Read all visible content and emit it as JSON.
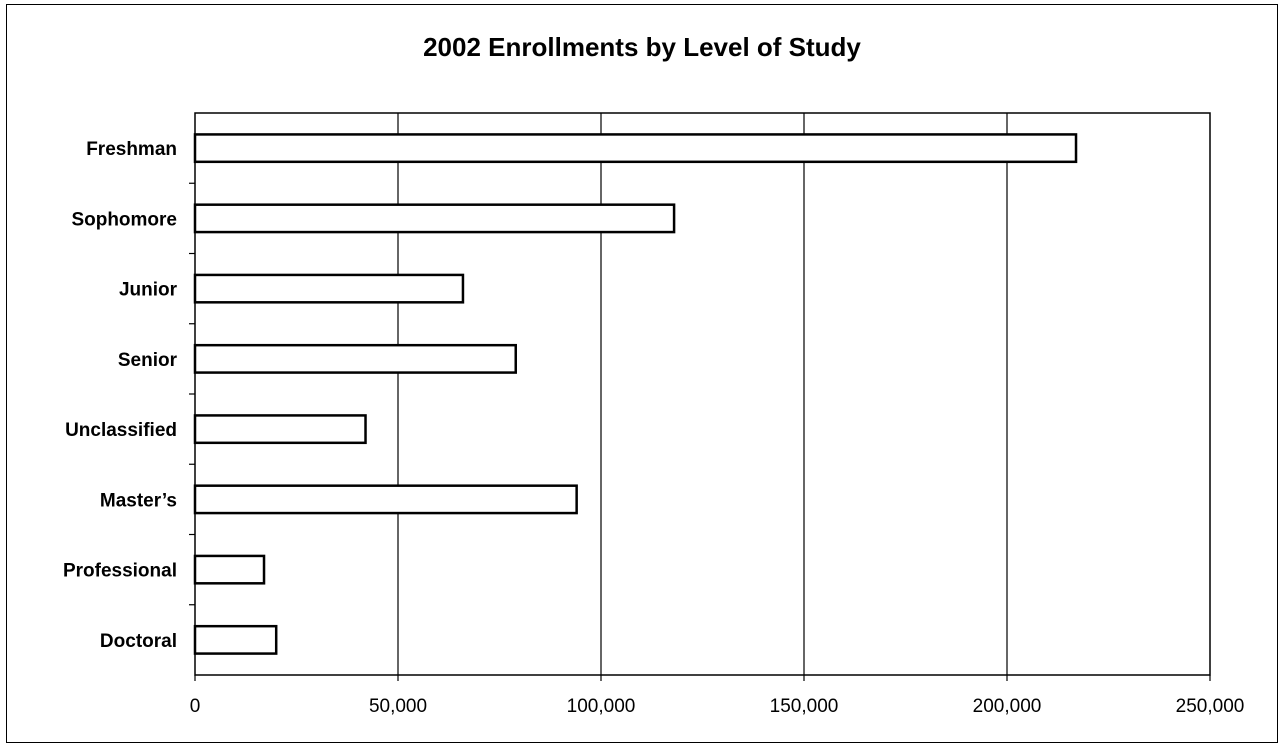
{
  "chart_data": {
    "type": "bar",
    "orientation": "horizontal",
    "title": "2002 Enrollments by Level of Study",
    "xlabel": "",
    "ylabel": "",
    "categories": [
      "Freshman",
      "Sophomore",
      "Junior",
      "Senior",
      "Unclassified",
      "Master’s",
      "Professional",
      "Doctoral"
    ],
    "values": [
      217000,
      118000,
      66000,
      79000,
      42000,
      94000,
      17000,
      20000
    ],
    "xlim": [
      0,
      250000
    ],
    "xticks": [
      "0",
      "50,000",
      "100,000",
      "150,000",
      "200,000",
      "250,000"
    ],
    "xtick_values": [
      0,
      50000,
      100000,
      150000,
      200000,
      250000
    ],
    "grid": "vertical",
    "legend": "none",
    "bar_fill": "#ffffff",
    "bar_stroke": "#000000"
  }
}
